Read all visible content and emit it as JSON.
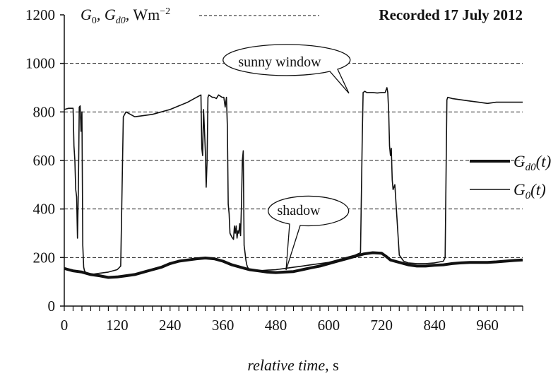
{
  "chart_data": {
    "type": "line",
    "title": "Recorded 17 July 2012",
    "ylabel_parts": [
      "G",
      "0",
      ", ",
      "G",
      "d0",
      ", Wm",
      "−2"
    ],
    "xlabel_italic": "relative time",
    "xlabel_unit": ", s",
    "xlim": [
      0,
      1040
    ],
    "ylim": [
      0,
      1200
    ],
    "x_ticks": [
      0,
      120,
      240,
      360,
      480,
      600,
      720,
      840,
      960
    ],
    "x_tick_labels": [
      "0",
      "120",
      "240",
      "360",
      "480",
      "600",
      "720",
      "840",
      "960"
    ],
    "y_ticks": [
      0,
      200,
      400,
      600,
      800,
      1000,
      1200
    ],
    "y_tick_labels": [
      "0",
      "200",
      "400",
      "600",
      "800",
      "1000",
      "1200"
    ],
    "grid": "horizontal dashed",
    "legend": [
      {
        "sym": "G",
        "sub": "d0",
        "arg": "(t)",
        "series": "Gd0"
      },
      {
        "sym": "G",
        "sub": "0",
        "arg": "(t)",
        "series": "G0"
      }
    ],
    "annotations": [
      {
        "text": "sunny window",
        "target": [
          680,
          880
        ]
      },
      {
        "text": "shadow",
        "target": [
          505,
          152
        ]
      }
    ],
    "series": [
      {
        "key": "G0",
        "x": [
          0,
          10,
          20,
          22,
          24,
          26,
          28,
          30,
          32,
          34,
          36,
          38,
          40,
          42,
          44,
          46,
          48,
          52,
          60,
          80,
          100,
          120,
          128,
          134,
          140,
          160,
          200,
          240,
          280,
          300,
          310,
          312,
          314,
          316,
          318,
          320,
          322,
          324,
          326,
          328,
          332,
          336,
          340,
          345,
          350,
          358,
          362,
          365,
          368,
          370,
          372,
          374,
          376,
          380,
          384,
          386,
          388,
          390,
          392,
          394,
          396,
          398,
          400,
          402,
          404,
          406,
          408,
          410,
          412,
          414,
          416,
          418,
          420,
          428,
          440,
          460,
          480,
          500,
          520,
          540,
          560,
          580,
          600,
          620,
          640,
          660,
          672,
          676,
          678,
          682,
          686,
          690,
          700,
          710,
          720,
          728,
          730,
          732,
          734,
          736,
          738,
          740,
          742,
          744,
          746,
          750,
          760,
          770,
          780,
          800,
          820,
          840,
          860,
          864,
          868,
          870,
          880,
          900,
          920,
          940,
          960,
          980,
          1000,
          1020,
          1040
        ],
        "y": [
          810,
          815,
          815,
          660,
          600,
          480,
          450,
          280,
          490,
          820,
          825,
          720,
          800,
          250,
          160,
          145,
          140,
          135,
          130,
          135,
          140,
          150,
          165,
          780,
          800,
          780,
          790,
          810,
          840,
          860,
          870,
          650,
          620,
          810,
          730,
          640,
          490,
          600,
          860,
          870,
          865,
          860,
          860,
          855,
          870,
          860,
          860,
          820,
          860,
          740,
          420,
          380,
          300,
          285,
          275,
          330,
          300,
          330,
          280,
          310,
          300,
          340,
          290,
          420,
          600,
          640,
          250,
          220,
          190,
          170,
          160,
          155,
          150,
          148,
          145,
          148,
          150,
          155,
          160,
          165,
          170,
          175,
          180,
          190,
          200,
          210,
          220,
          700,
          880,
          885,
          880,
          880,
          880,
          878,
          880,
          880,
          890,
          900,
          880,
          800,
          660,
          620,
          650,
          520,
          480,
          500,
          210,
          185,
          178,
          175,
          175,
          178,
          185,
          200,
          850,
          860,
          855,
          850,
          845,
          840,
          835,
          840,
          840,
          840,
          840
        ],
        "color": "#111111",
        "width": 1.6
      },
      {
        "key": "Gd0",
        "x": [
          0,
          10,
          20,
          40,
          60,
          80,
          100,
          120,
          140,
          160,
          180,
          200,
          220,
          240,
          260,
          280,
          300,
          320,
          340,
          360,
          380,
          400,
          420,
          440,
          460,
          480,
          500,
          520,
          540,
          560,
          580,
          600,
          620,
          640,
          660,
          680,
          700,
          720,
          730,
          740,
          760,
          780,
          800,
          820,
          840,
          860,
          880,
          900,
          920,
          940,
          960,
          980,
          1000,
          1020,
          1040
        ],
        "y": [
          155,
          150,
          145,
          140,
          130,
          125,
          118,
          120,
          125,
          130,
          140,
          150,
          160,
          175,
          185,
          190,
          195,
          198,
          195,
          185,
          170,
          160,
          150,
          145,
          140,
          138,
          140,
          142,
          150,
          158,
          165,
          175,
          185,
          195,
          205,
          215,
          220,
          218,
          205,
          190,
          180,
          170,
          165,
          165,
          168,
          170,
          175,
          178,
          180,
          180,
          180,
          182,
          185,
          188,
          190
        ],
        "color": "#111111",
        "width": 4
      }
    ]
  }
}
